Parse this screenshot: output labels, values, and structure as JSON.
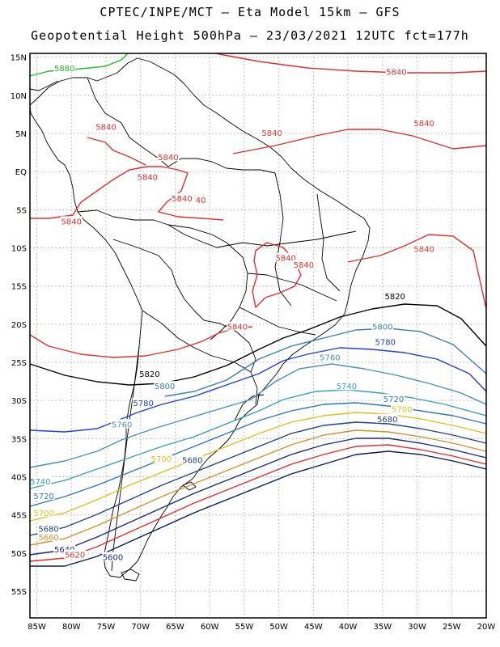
{
  "header": {
    "line1": "CPTEC/INPE/MCT –  Eta Model 15km – GFS",
    "line2": "Geopotential Height 500hPa – 23/03/2021 12UTC fct=177h"
  },
  "map": {
    "lon_range": [
      -86,
      -20
    ],
    "lat_range": [
      -58.5,
      15.5
    ],
    "lon_ticks": [
      "85W",
      "80W",
      "75W",
      "70W",
      "65W",
      "60W",
      "55W",
      "50W",
      "45W",
      "40W",
      "35W",
      "30W",
      "25W",
      "20W"
    ],
    "lat_ticks": [
      "15N",
      "10N",
      "5N",
      "EQ",
      "5S",
      "10S",
      "15S",
      "20S",
      "25S",
      "30S",
      "35S",
      "40S",
      "45S",
      "50S",
      "55S"
    ],
    "grid_color": "#b0b0b0",
    "frame_color": "#000000"
  },
  "contour_labels": [
    {
      "text": "5880",
      "color": "#22bb22",
      "lon": -81,
      "lat": 13.5
    },
    {
      "text": "5840",
      "color": "#e03030",
      "lon": -33,
      "lat": 13.0
    },
    {
      "text": "5840",
      "color": "#e03030",
      "lon": -75,
      "lat": 5.8
    },
    {
      "text": "5840",
      "color": "#e03030",
      "lon": -51,
      "lat": 5.0
    },
    {
      "text": "5840",
      "color": "#e03030",
      "lon": -29,
      "lat": 6.3
    },
    {
      "text": "5840",
      "color": "#e03030",
      "lon": -66,
      "lat": 1.8
    },
    {
      "text": "5840",
      "color": "#e03030",
      "lon": -69,
      "lat": -0.8
    },
    {
      "text": "5840",
      "color": "#e03030",
      "lon": -64,
      "lat": -3.6
    },
    {
      "text": "40",
      "color": "#e03030",
      "lon": -61.3,
      "lat": -3.8
    },
    {
      "text": "5840",
      "color": "#e03030",
      "lon": -80,
      "lat": -6.6
    },
    {
      "text": "5840",
      "color": "#e03030",
      "lon": -49,
      "lat": -11.4
    },
    {
      "text": "5840",
      "color": "#e03030",
      "lon": -46.4,
      "lat": -12.3
    },
    {
      "text": "5840",
      "color": "#e03030",
      "lon": -29,
      "lat": -10.2
    },
    {
      "text": "5840",
      "color": "#e03030",
      "lon": -56,
      "lat": -20.4
    },
    {
      "text": "5820",
      "color": "#000000",
      "lon": -33.2,
      "lat": -16.4
    },
    {
      "text": "5820",
      "color": "#000000",
      "lon": -68.7,
      "lat": -26.6
    },
    {
      "text": "5800",
      "color": "#3a7fb5",
      "lon": -35,
      "lat": -20.4
    },
    {
      "text": "5800",
      "color": "#3a7fb5",
      "lon": -66.5,
      "lat": -28.2
    },
    {
      "text": "5780",
      "color": "#2040e0",
      "lon": -34.6,
      "lat": -22.4
    },
    {
      "text": "5780",
      "color": "#2040e0",
      "lon": -69.6,
      "lat": -30.4
    },
    {
      "text": "5760",
      "color": "#4a90c0",
      "lon": -42.6,
      "lat": -24.4
    },
    {
      "text": "5760",
      "color": "#4a90c0",
      "lon": -72.7,
      "lat": -33.2
    },
    {
      "text": "5740",
      "color": "#3aa0b8",
      "lon": -40.2,
      "lat": -28.2
    },
    {
      "text": "5740",
      "color": "#3aa0b8",
      "lon": -84.5,
      "lat": -40.7
    },
    {
      "text": "5720",
      "color": "#3575c0",
      "lon": -33.4,
      "lat": -29.9
    },
    {
      "text": "5720",
      "color": "#3575c0",
      "lon": -84.0,
      "lat": -42.6
    },
    {
      "text": "5700",
      "color": "#e0c020",
      "lon": -32.2,
      "lat": -31.2
    },
    {
      "text": "5700",
      "color": "#e0c020",
      "lon": -67.0,
      "lat": -37.7
    },
    {
      "text": "5700",
      "color": "#e0c020",
      "lon": -84.0,
      "lat": -44.8
    },
    {
      "text": "5680",
      "color": "#224488",
      "lon": -34.3,
      "lat": -32.5
    },
    {
      "text": "5680",
      "color": "#224488",
      "lon": -62.5,
      "lat": -37.9
    },
    {
      "text": "5680",
      "color": "#224488",
      "lon": -83.3,
      "lat": -46.9
    },
    {
      "text": "5660",
      "color": "#d89030",
      "lon": -83.3,
      "lat": -48.0
    },
    {
      "text": "5640",
      "color": "#1a2a80",
      "lon": -81.0,
      "lat": -49.6
    },
    {
      "text": "5620",
      "color": "#e03030",
      "lon": -79.5,
      "lat": -50.3
    },
    {
      "text": "5600",
      "color": "#1a2a80",
      "lon": -74.0,
      "lat": -50.6
    }
  ]
}
